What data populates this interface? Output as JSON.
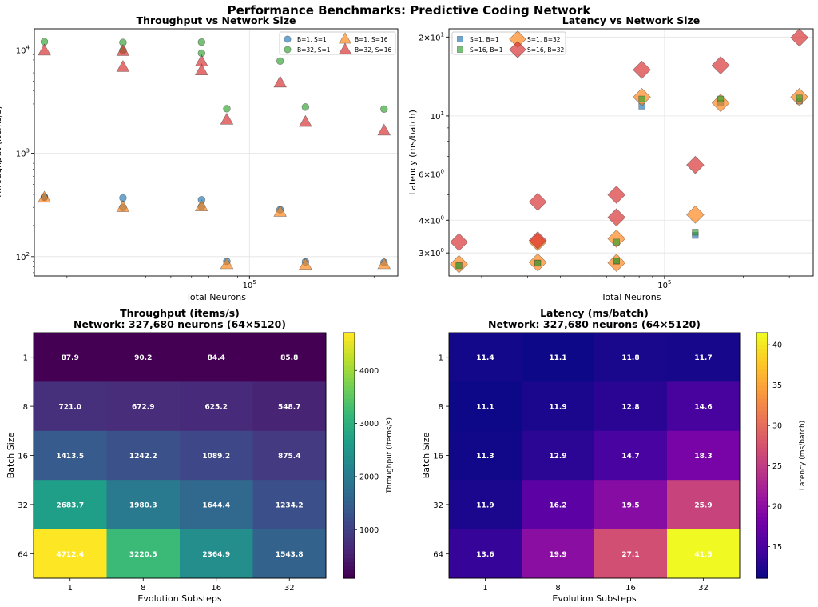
{
  "suptitle": "Performance Benchmarks: Predictive Coding Network",
  "chart_data": [
    {
      "id": "throughput-scatter",
      "type": "scatter",
      "title": "Throughput vs Network Size",
      "xlabel": "Total Neurons",
      "ylabel": "Throughput (items/s)",
      "xscale": "log",
      "yscale": "log",
      "xlim": [
        15000,
        370000
      ],
      "ylim": [
        65,
        16000
      ],
      "x_ticks": [
        {
          "value": 100000,
          "label": "10^5"
        }
      ],
      "y_ticks": [
        {
          "value": 100,
          "label": "10^2"
        },
        {
          "value": 1000,
          "label": "10^3"
        },
        {
          "value": 10000,
          "label": "10^4"
        }
      ],
      "grid": true,
      "legend_position": "top-right",
      "series": [
        {
          "name": "B=1, S=1",
          "marker": "circle",
          "color": "#1f77b4",
          "points": [
            [
              16384,
              375
            ],
            [
              32768,
              300
            ],
            [
              65536,
              305
            ],
            [
              81920,
              90
            ],
            [
              131072,
              285
            ],
            [
              163840,
              89
            ],
            [
              327680,
              88
            ]
          ]
        },
        {
          "name": "B=1, S=16",
          "marker": "triangle",
          "color": "#ff7f0e",
          "points": [
            [
              16384,
              370
            ],
            [
              32768,
              300
            ],
            [
              65536,
              305
            ],
            [
              81920,
              84
            ],
            [
              131072,
              270
            ],
            [
              163840,
              83
            ],
            [
              327680,
              84
            ]
          ]
        },
        {
          "name": "B=32, S=1",
          "marker": "circle",
          "color": "#2ca02c",
          "points": [
            [
              16384,
              12000
            ],
            [
              32768,
              11800
            ],
            [
              65536,
              11900
            ],
            [
              65536,
              9300
            ],
            [
              81920,
              2700
            ],
            [
              131072,
              7800
            ],
            [
              163840,
              2800
            ],
            [
              327680,
              2680
            ]
          ]
        },
        {
          "name": "B=32, S=16",
          "marker": "triangle",
          "color": "#d62728",
          "points": [
            [
              16384,
              9800
            ],
            [
              32768,
              9700
            ],
            [
              32768,
              6800
            ],
            [
              65536,
              7700
            ],
            [
              65536,
              6300
            ],
            [
              81920,
              2100
            ],
            [
              131072,
              4800
            ],
            [
              163840,
              2000
            ],
            [
              327680,
              1650
            ]
          ]
        }
      ],
      "extra_points": [
        {
          "series": "B=1, S=1",
          "points": [
            [
              16384,
              380
            ],
            [
              32768,
              370
            ],
            [
              65536,
              355
            ]
          ]
        },
        {
          "series": "B=32, S=1",
          "points": [
            [
              32768,
              9900
            ]
          ]
        }
      ]
    },
    {
      "id": "latency-scatter",
      "type": "scatter",
      "title": "Latency vs Network Size",
      "xlabel": "Total Neurons",
      "ylabel": "Latency (ms/batch)",
      "xscale": "log",
      "yscale": "log",
      "xlim": [
        15000,
        370000
      ],
      "ylim": [
        2.45,
        21.5
      ],
      "x_ticks": [
        {
          "value": 100000,
          "label": "10^5"
        }
      ],
      "y_ticks": [
        {
          "value": 3,
          "label": "3×10^0"
        },
        {
          "value": 4,
          "label": "4×10^0"
        },
        {
          "value": 6,
          "label": "6×10^0"
        },
        {
          "value": 10,
          "label": "10^1"
        },
        {
          "value": 20,
          "label": "2×10^1"
        }
      ],
      "grid": true,
      "legend_position": "top-left",
      "series": [
        {
          "name": "S=1, B=1",
          "marker": "square",
          "color": "#1f77b4",
          "points": [
            [
              16384,
              2.7
            ],
            [
              32768,
              2.75
            ],
            [
              65536,
              2.78
            ],
            [
              81920,
              10.9
            ],
            [
              131072,
              3.5
            ],
            [
              163840,
              11.2
            ],
            [
              327680,
              11.4
            ]
          ]
        },
        {
          "name": "S=1, B=32",
          "marker": "diamond",
          "color": "#ff7f0e",
          "points": [
            [
              16384,
              2.72
            ],
            [
              32768,
              2.76
            ],
            [
              32768,
              3.3
            ],
            [
              65536,
              2.75
            ],
            [
              65536,
              3.4
            ],
            [
              81920,
              11.8
            ],
            [
              131072,
              4.2
            ],
            [
              163840,
              11.2
            ],
            [
              327680,
              11.8
            ]
          ]
        },
        {
          "name": "S=16, B=1",
          "marker": "square",
          "color": "#2ca02c",
          "points": [
            [
              16384,
              2.68
            ],
            [
              32768,
              2.74
            ],
            [
              65536,
              2.8
            ],
            [
              65536,
              3.3
            ],
            [
              81920,
              11.6
            ],
            [
              131072,
              3.6
            ],
            [
              163840,
              11.6
            ],
            [
              327680,
              11.7
            ]
          ]
        },
        {
          "name": "S=16, B=32",
          "marker": "diamond",
          "color": "#d62728",
          "points": [
            [
              16384,
              3.3
            ],
            [
              32768,
              4.7
            ],
            [
              32768,
              3.35
            ],
            [
              65536,
              5.0
            ],
            [
              65536,
              4.1
            ],
            [
              81920,
              15.0
            ],
            [
              131072,
              6.5
            ],
            [
              163840,
              15.6
            ],
            [
              327680,
              19.9
            ]
          ]
        }
      ]
    },
    {
      "id": "throughput-heatmap",
      "type": "heatmap",
      "title": "Throughput (items/s)",
      "subtitle": "Network: 327,680 neurons (64×5120)",
      "xlabel": "Evolution Substeps",
      "ylabel": "Batch Size",
      "x_categories": [
        "1",
        "8",
        "16",
        "32"
      ],
      "y_categories": [
        "1",
        "8",
        "16",
        "32",
        "64"
      ],
      "values": [
        [
          87.9,
          90.2,
          84.4,
          85.8
        ],
        [
          721.0,
          672.9,
          625.2,
          548.7
        ],
        [
          1413.5,
          1242.2,
          1089.2,
          875.4
        ],
        [
          2683.7,
          1980.3,
          1644.4,
          1234.2
        ],
        [
          4712.4,
          3220.5,
          2364.9,
          1543.8
        ]
      ],
      "colormap": "viridis",
      "colorbar_label": "Throughput (items/s)",
      "colorbar_ticks": [
        1000,
        2000,
        3000,
        4000
      ],
      "vmin": 84.4,
      "vmax": 4712.4
    },
    {
      "id": "latency-heatmap",
      "type": "heatmap",
      "title": "Latency (ms/batch)",
      "subtitle": "Network: 327,680 neurons (64×5120)",
      "xlabel": "Evolution Substeps",
      "ylabel": "Batch Size",
      "x_categories": [
        "1",
        "8",
        "16",
        "32"
      ],
      "y_categories": [
        "1",
        "8",
        "16",
        "32",
        "64"
      ],
      "values": [
        [
          11.4,
          11.1,
          11.8,
          11.7
        ],
        [
          11.1,
          11.9,
          12.8,
          14.6
        ],
        [
          11.3,
          12.9,
          14.7,
          18.3
        ],
        [
          11.9,
          16.2,
          19.5,
          25.9
        ],
        [
          13.6,
          19.9,
          27.1,
          41.5
        ]
      ],
      "colormap": "plasma",
      "colorbar_label": "Latency (ms/batch)",
      "colorbar_ticks": [
        15,
        20,
        25,
        30,
        35,
        40
      ],
      "vmin": 11.1,
      "vmax": 41.5
    }
  ]
}
